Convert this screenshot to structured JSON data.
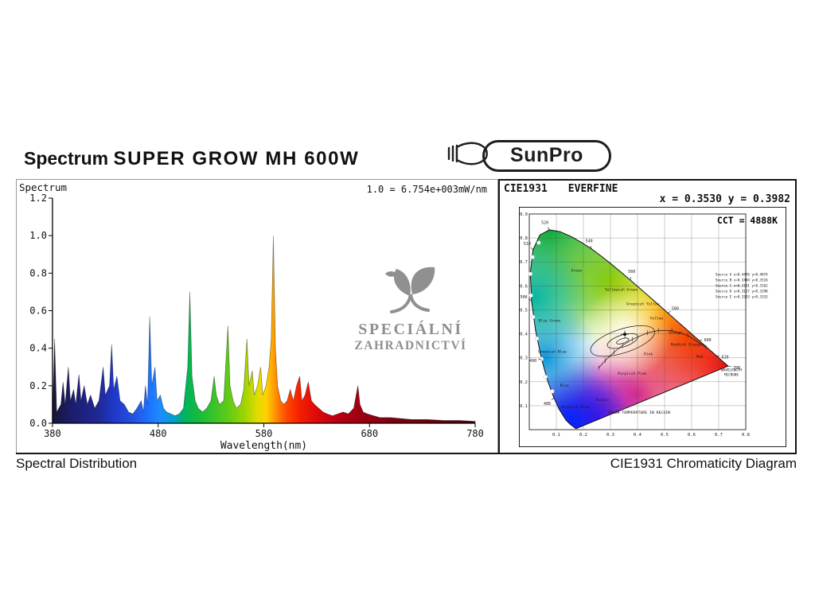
{
  "header": {
    "title_prefix": "Spectrum",
    "title_main": "SUPER GROW MH 600W",
    "brand": "SunPro"
  },
  "watermark": {
    "line1": "SPECIÁLNÍ",
    "line2": "ZAHRADNICTVÍ"
  },
  "left_panel": {
    "caption": "Spectral Distribution",
    "corner_label": "Spectrum",
    "scale_note": "1.0 = 6.754e+003mW/nm",
    "xlabel": "Wavelength(nm)"
  },
  "right_panel": {
    "caption": "CIE1931 Chromaticity Diagram",
    "header_left": "CIE1931",
    "header_right": "EVERFINE",
    "xy_text": "x = 0.3530 y = 0.3982",
    "cct_text": "CCT = 4888K",
    "kelvin_label": "COLOR TEMPERATURE IN KELVIN",
    "wavelength_label_1": "WAVELENGTH",
    "wavelength_label_2": "MICRONS"
  },
  "chart_data": [
    {
      "type": "area",
      "title": "Spectral Distribution",
      "ylabel": "Spectrum",
      "xlabel": "Wavelength(nm)",
      "scale_note": "1.0 = 6.754e+003mW/nm",
      "xlim": [
        380,
        780
      ],
      "ylim": [
        0,
        1.2
      ],
      "x_ticks": [
        380,
        480,
        580,
        680,
        780
      ],
      "y_ticks": [
        0.0,
        0.2,
        0.4,
        0.6,
        0.8,
        1.0,
        1.2
      ],
      "grid": false,
      "points": [
        [
          380,
          0.02
        ],
        [
          382,
          0.45
        ],
        [
          384,
          0.06
        ],
        [
          388,
          0.1
        ],
        [
          390,
          0.22
        ],
        [
          392,
          0.1
        ],
        [
          395,
          0.3
        ],
        [
          397,
          0.12
        ],
        [
          400,
          0.18
        ],
        [
          402,
          0.1
        ],
        [
          405,
          0.26
        ],
        [
          407,
          0.12
        ],
        [
          410,
          0.2
        ],
        [
          413,
          0.1
        ],
        [
          416,
          0.15
        ],
        [
          420,
          0.08
        ],
        [
          424,
          0.12
        ],
        [
          428,
          0.3
        ],
        [
          430,
          0.15
        ],
        [
          434,
          0.2
        ],
        [
          436,
          0.42
        ],
        [
          438,
          0.18
        ],
        [
          441,
          0.25
        ],
        [
          444,
          0.12
        ],
        [
          448,
          0.1
        ],
        [
          452,
          0.06
        ],
        [
          456,
          0.05
        ],
        [
          460,
          0.08
        ],
        [
          464,
          0.12
        ],
        [
          466,
          0.06
        ],
        [
          468,
          0.2
        ],
        [
          470,
          0.1
        ],
        [
          472,
          0.57
        ],
        [
          474,
          0.2
        ],
        [
          477,
          0.3
        ],
        [
          479,
          0.12
        ],
        [
          482,
          0.15
        ],
        [
          485,
          0.08
        ],
        [
          488,
          0.06
        ],
        [
          492,
          0.05
        ],
        [
          496,
          0.04
        ],
        [
          500,
          0.05
        ],
        [
          504,
          0.08
        ],
        [
          508,
          0.3
        ],
        [
          510,
          0.7
        ],
        [
          512,
          0.25
        ],
        [
          515,
          0.12
        ],
        [
          518,
          0.08
        ],
        [
          522,
          0.06
        ],
        [
          526,
          0.08
        ],
        [
          530,
          0.12
        ],
        [
          533,
          0.25
        ],
        [
          535,
          0.15
        ],
        [
          538,
          0.1
        ],
        [
          542,
          0.12
        ],
        [
          546,
          0.52
        ],
        [
          548,
          0.2
        ],
        [
          551,
          0.12
        ],
        [
          554,
          0.08
        ],
        [
          558,
          0.1
        ],
        [
          561,
          0.18
        ],
        [
          564,
          0.45
        ],
        [
          566,
          0.2
        ],
        [
          569,
          0.28
        ],
        [
          571,
          0.15
        ],
        [
          574,
          0.2
        ],
        [
          577,
          0.3
        ],
        [
          579,
          0.15
        ],
        [
          582,
          0.2
        ],
        [
          585,
          0.3
        ],
        [
          587,
          0.45
        ],
        [
          589,
          1.0
        ],
        [
          591,
          0.4
        ],
        [
          593,
          0.2
        ],
        [
          596,
          0.12
        ],
        [
          599,
          0.1
        ],
        [
          602,
          0.12
        ],
        [
          605,
          0.18
        ],
        [
          608,
          0.12
        ],
        [
          611,
          0.2
        ],
        [
          614,
          0.25
        ],
        [
          616,
          0.12
        ],
        [
          619,
          0.15
        ],
        [
          622,
          0.22
        ],
        [
          625,
          0.12
        ],
        [
          628,
          0.1
        ],
        [
          632,
          0.08
        ],
        [
          636,
          0.06
        ],
        [
          640,
          0.05
        ],
        [
          645,
          0.04
        ],
        [
          650,
          0.05
        ],
        [
          655,
          0.06
        ],
        [
          660,
          0.05
        ],
        [
          665,
          0.08
        ],
        [
          669,
          0.2
        ],
        [
          671,
          0.1
        ],
        [
          674,
          0.06
        ],
        [
          678,
          0.05
        ],
        [
          684,
          0.04
        ],
        [
          690,
          0.03
        ],
        [
          700,
          0.03
        ],
        [
          710,
          0.025
        ],
        [
          720,
          0.02
        ],
        [
          735,
          0.02
        ],
        [
          750,
          0.015
        ],
        [
          765,
          0.015
        ],
        [
          780,
          0.01
        ]
      ],
      "color_stops": [
        [
          0,
          "#16163a"
        ],
        [
          0.05,
          "#1d1d70"
        ],
        [
          0.11,
          "#1f2896"
        ],
        [
          0.145,
          "#2038c8"
        ],
        [
          0.19,
          "#2450e0"
        ],
        [
          0.225,
          "#1e6eff"
        ],
        [
          0.255,
          "#1e8cff"
        ],
        [
          0.285,
          "#00a0d2"
        ],
        [
          0.315,
          "#00b45a"
        ],
        [
          0.345,
          "#16bb3c"
        ],
        [
          0.385,
          "#3cc428"
        ],
        [
          0.42,
          "#66cc14"
        ],
        [
          0.455,
          "#a0d400"
        ],
        [
          0.485,
          "#e0dc00"
        ],
        [
          0.505,
          "#ffd200"
        ],
        [
          0.52,
          "#ffa800"
        ],
        [
          0.535,
          "#ff7a00"
        ],
        [
          0.555,
          "#ff4600"
        ],
        [
          0.585,
          "#f51e00"
        ],
        [
          0.625,
          "#dc0a0a"
        ],
        [
          0.675,
          "#b80014"
        ],
        [
          0.735,
          "#980012"
        ],
        [
          0.82,
          "#7a000e"
        ],
        [
          1,
          "#57000a"
        ]
      ]
    },
    {
      "type": "scatter",
      "title": "CIE1931 Chromaticity Diagram",
      "instrument": "EVERFINE",
      "point": {
        "x": 0.353,
        "y": 0.3982
      },
      "cct_k": 4888,
      "x_ticks": [
        0.1,
        0.2,
        0.3,
        0.4,
        0.5,
        0.6,
        0.7,
        0.8
      ],
      "y_ticks": [
        0.1,
        0.2,
        0.3,
        0.4,
        0.5,
        0.6,
        0.7,
        0.8,
        0.9
      ],
      "locus": [
        [
          380,
          0.1741,
          0.005
        ],
        [
          420,
          0.1714,
          0.0051
        ],
        [
          440,
          0.1644,
          0.0109
        ],
        [
          455,
          0.151,
          0.0227
        ],
        [
          465,
          0.1355,
          0.0399
        ],
        [
          475,
          0.1096,
          0.0868
        ],
        [
          480,
          0.0913,
          0.1327
        ],
        [
          485,
          0.0687,
          0.2007
        ],
        [
          490,
          0.0454,
          0.295
        ],
        [
          495,
          0.0235,
          0.4127
        ],
        [
          500,
          0.0082,
          0.5384
        ],
        [
          505,
          0.0039,
          0.6548
        ],
        [
          510,
          0.0139,
          0.7502
        ],
        [
          515,
          0.0389,
          0.812
        ],
        [
          520,
          0.0743,
          0.8338
        ],
        [
          525,
          0.1142,
          0.8262
        ],
        [
          530,
          0.1547,
          0.8059
        ],
        [
          535,
          0.1929,
          0.7816
        ],
        [
          540,
          0.2296,
          0.7543
        ],
        [
          545,
          0.2658,
          0.7243
        ],
        [
          550,
          0.3016,
          0.6923
        ],
        [
          555,
          0.3373,
          0.6589
        ],
        [
          560,
          0.3731,
          0.6245
        ],
        [
          565,
          0.4087,
          0.5896
        ],
        [
          570,
          0.4441,
          0.5547
        ],
        [
          575,
          0.4788,
          0.5202
        ],
        [
          580,
          0.5125,
          0.4866
        ],
        [
          585,
          0.5448,
          0.4544
        ],
        [
          590,
          0.5752,
          0.4242
        ],
        [
          595,
          0.6029,
          0.3965
        ],
        [
          600,
          0.627,
          0.3725
        ],
        [
          605,
          0.6482,
          0.3514
        ],
        [
          610,
          0.6658,
          0.334
        ],
        [
          620,
          0.6915,
          0.3083
        ],
        [
          630,
          0.7079,
          0.292
        ],
        [
          640,
          0.719,
          0.2809
        ],
        [
          650,
          0.726,
          0.274
        ],
        [
          680,
          0.7334,
          0.2666
        ],
        [
          700,
          0.7347,
          0.2653
        ]
      ],
      "wavelength_labels": [
        480,
        490,
        500,
        510,
        520,
        540,
        560,
        580,
        600,
        620,
        700
      ],
      "white_dots": [
        [
          0.085,
          0.16
        ],
        [
          0.06,
          0.22
        ],
        [
          0.045,
          0.295
        ],
        [
          0.028,
          0.38
        ],
        [
          0.014,
          0.47
        ],
        [
          0.006,
          0.56
        ],
        [
          0.004,
          0.65
        ],
        [
          0.012,
          0.72
        ],
        [
          0.035,
          0.78
        ]
      ],
      "region_labels": [
        [
          "Green",
          0.175,
          0.66
        ],
        [
          "Yellowish Green",
          0.34,
          0.58
        ],
        [
          "Greenish Yellow",
          0.42,
          0.52
        ],
        [
          "Yellow",
          0.47,
          0.46
        ],
        [
          "Orange",
          0.54,
          0.4
        ],
        [
          "Reddish Orange",
          0.58,
          0.35
        ],
        [
          "Red",
          0.63,
          0.3
        ],
        [
          "Pink",
          0.44,
          0.31
        ],
        [
          "Purplish Pink",
          0.38,
          0.23
        ],
        [
          "Purple",
          0.27,
          0.12
        ],
        [
          "Purplish Blue",
          0.17,
          0.09
        ],
        [
          "Blue",
          0.13,
          0.18
        ],
        [
          "Greenish Blue",
          0.085,
          0.32
        ],
        [
          "Blue Green",
          0.075,
          0.45
        ]
      ],
      "planckian": [
        [
          0.6528,
          0.3444
        ],
        [
          0.5857,
          0.3931
        ],
        [
          0.5267,
          0.4133
        ],
        [
          0.477,
          0.4137
        ],
        [
          0.4369,
          0.4041
        ],
        [
          0.3805,
          0.3768
        ],
        [
          0.3451,
          0.3516
        ],
        [
          0.3135,
          0.3236
        ],
        [
          0.2807,
          0.2884
        ],
        [
          0.2565,
          0.2577
        ]
      ],
      "sources": [
        "Source A x=0.4476 y=0.4074",
        "Source B x=0.3484 y=0.3516",
        "Source C x=0.3101 y=0.3162",
        "Source D x=0.3127 y=0.3290",
        "Source E x=0.3333 y=0.3333"
      ]
    }
  ]
}
